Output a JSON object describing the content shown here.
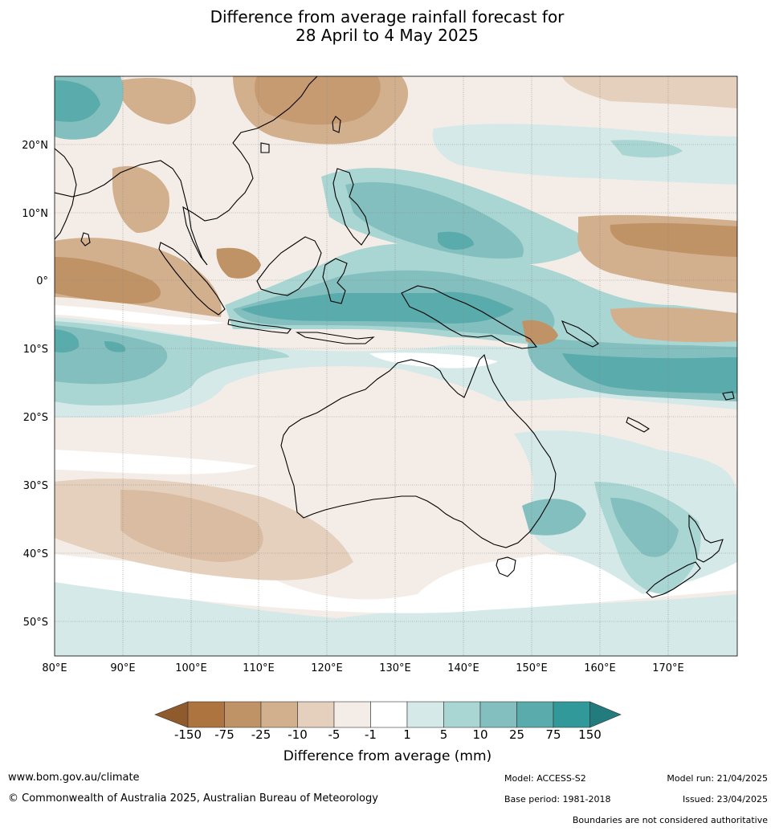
{
  "title": {
    "line1": "Difference from average rainfall forecast for",
    "line2": "28 April to 4 May 2025"
  },
  "map": {
    "region": "Australia, Indonesia, Maritime Continent and Western Pacific",
    "lat_labels": [
      "20°N",
      "10°N",
      "0°",
      "10°S",
      "20°S",
      "30°S",
      "40°S",
      "50°S"
    ],
    "lon_labels": [
      "80°E",
      "90°E",
      "100°E",
      "110°E",
      "120°E",
      "130°E",
      "140°E",
      "150°E",
      "160°E",
      "170°E"
    ]
  },
  "colorbar": {
    "title": "Difference from average (mm)",
    "tick_labels": [
      "-150",
      "-75",
      "-25",
      "-10",
      "-5",
      "-1",
      "1",
      "5",
      "10",
      "25",
      "75",
      "150"
    ],
    "colors": {
      "lt_neg150": "#8f5a2c",
      "neg150_neg75": "#ad743f",
      "neg75_neg25": "#c09366",
      "neg25_neg10": "#d2af8d",
      "neg10_neg5": "#e4d0bd",
      "neg5_neg1": "#f4ede7",
      "neg1_1": "#ffffff",
      "1_5": "#d5e9e8",
      "5_10": "#a9d5d3",
      "10_25": "#82bfbe",
      "25_75": "#5aabab",
      "75_150": "#31999a",
      "gt_150": "#227c7d"
    }
  },
  "footer": {
    "website": "www.bom.gov.au/climate",
    "copyright": "© Commonwealth of Australia 2025, Australian Bureau of Meteorology",
    "model": "Model: ACCESS-S2",
    "model_run": "Model run: 21/04/2025",
    "base_period": "Base period: 1981-2018",
    "issued": "Issued: 23/04/2025",
    "disclaimer": "Boundaries are not considered authoritative"
  }
}
